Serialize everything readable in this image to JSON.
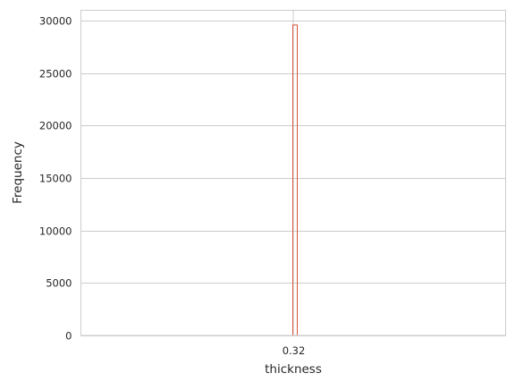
{
  "chart_data": {
    "type": "bar",
    "subtype": "histogram",
    "title": "",
    "xlabel": "thickness",
    "ylabel": "Frequency",
    "x_tick_labels": [
      "0.32"
    ],
    "y_ticks": [
      0,
      5000,
      10000,
      15000,
      20000,
      25000,
      30000
    ],
    "y_tick_labels": [
      "0",
      "5000",
      "10000",
      "15000",
      "20000",
      "25000",
      "30000"
    ],
    "ylim": [
      0,
      31000
    ],
    "grid": true,
    "legend": "none",
    "series": [
      {
        "name": "thickness",
        "bins": [
          {
            "label": "0.32",
            "value": 29600
          }
        ],
        "color": "#d9553a"
      }
    ],
    "colors": {
      "grid": "#cccccc",
      "spine": "#cccccc",
      "bar_edge": "#d9553a",
      "text": "#262626"
    }
  }
}
